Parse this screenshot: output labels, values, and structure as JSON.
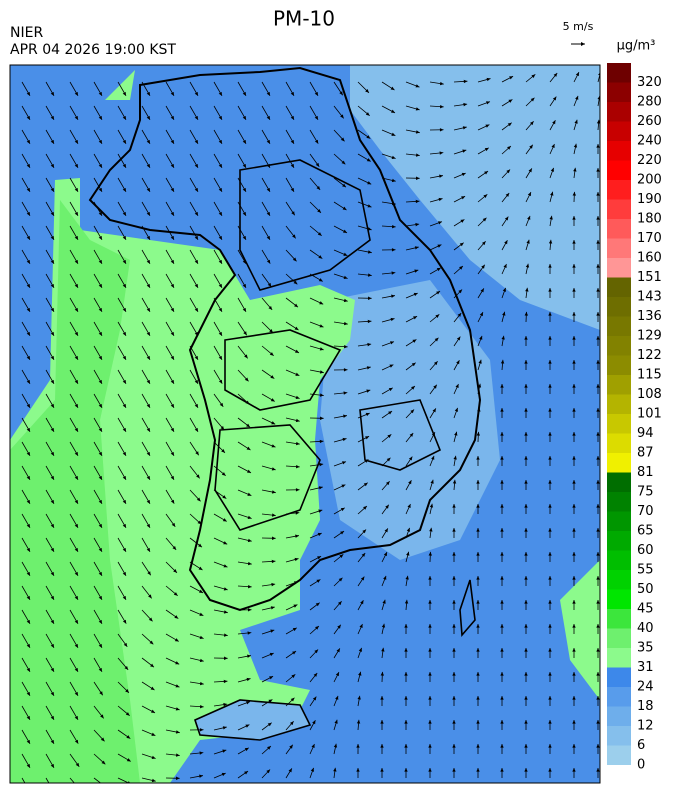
{
  "header": {
    "title": "PM-10",
    "source": "NIER",
    "time": "APR 04 2026 19:00 KST",
    "wind_scale": "5 m/s",
    "unit": "μg/m³"
  },
  "legend": {
    "levels": [
      {
        "label": "0",
        "color": "#9ccfec"
      },
      {
        "label": "6",
        "color": "#85bfec"
      },
      {
        "label": "12",
        "color": "#6eaeeb"
      },
      {
        "label": "18",
        "color": "#589ceb"
      },
      {
        "label": "24",
        "color": "#3d88ea"
      },
      {
        "label": "31",
        "color": "#8cfa8c"
      },
      {
        "label": "35",
        "color": "#6ef06e"
      },
      {
        "label": "40",
        "color": "#3ce63c"
      },
      {
        "label": "45",
        "color": "#00e600"
      },
      {
        "label": "50",
        "color": "#00d200"
      },
      {
        "label": "55",
        "color": "#00be00"
      },
      {
        "label": "60",
        "color": "#00aa00"
      },
      {
        "label": "65",
        "color": "#009600"
      },
      {
        "label": "70",
        "color": "#008200"
      },
      {
        "label": "75",
        "color": "#006e00"
      },
      {
        "label": "81",
        "color": "#f0f000"
      },
      {
        "label": "87",
        "color": "#dcdc00"
      },
      {
        "label": "94",
        "color": "#c8c800"
      },
      {
        "label": "101",
        "color": "#b4b400"
      },
      {
        "label": "108",
        "color": "#a0a000"
      },
      {
        "label": "115",
        "color": "#8c8c00"
      },
      {
        "label": "122",
        "color": "#828200"
      },
      {
        "label": "129",
        "color": "#787800"
      },
      {
        "label": "136",
        "color": "#6e6e00"
      },
      {
        "label": "143",
        "color": "#646400"
      },
      {
        "label": "151",
        "color": "#ff9696"
      },
      {
        "label": "160",
        "color": "#ff7878"
      },
      {
        "label": "170",
        "color": "#ff5a5a"
      },
      {
        "label": "180",
        "color": "#ff3c3c"
      },
      {
        "label": "190",
        "color": "#ff1e1e"
      },
      {
        "label": "200",
        "color": "#ff0000"
      },
      {
        "label": "220",
        "color": "#e60000"
      },
      {
        "label": "240",
        "color": "#c80000"
      },
      {
        "label": "260",
        "color": "#aa0000"
      },
      {
        "label": "280",
        "color": "#8c0000"
      },
      {
        "label": "320",
        "color": "#6e0000"
      }
    ]
  }
}
